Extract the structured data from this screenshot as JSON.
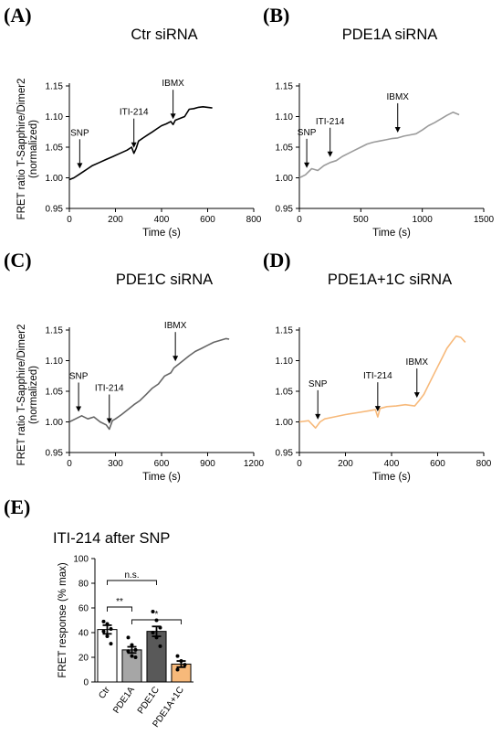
{
  "figure": {
    "shared_ylabel_line1": "FRET ratio T-Sapphire/Dimer2",
    "shared_ylabel_line2": "(normalized)"
  },
  "chart_data": [
    {
      "id": "A",
      "panel_label": "(A)",
      "type": "line",
      "title": "Ctr siRNA",
      "xlabel": "Time (s)",
      "ylabel": "FRET ratio T-Sapphire/Dimer2 (normalized)",
      "xlim": [
        0,
        800
      ],
      "ylim": [
        0.95,
        1.15
      ],
      "xticks": [
        0,
        200,
        400,
        600,
        800
      ],
      "xtick_labels": [
        "0",
        "200",
        "400",
        "600",
        "800"
      ],
      "yticks": [
        0.95,
        1.0,
        1.05,
        1.1,
        1.15
      ],
      "ytick_labels": [
        "0.95",
        "1.00",
        "1.05",
        "1.10",
        "1.15"
      ],
      "color": "#000000",
      "series": [
        {
          "x": [
            0,
            20,
            40,
            60,
            80,
            100,
            130,
            160,
            190,
            220,
            250,
            270,
            280,
            290,
            300,
            320,
            340,
            360,
            380,
            400,
            420,
            440,
            450,
            460,
            480,
            500,
            520,
            540,
            560,
            580,
            600,
            620
          ],
          "y": [
            0.997,
            1.0,
            1.005,
            1.01,
            1.015,
            1.02,
            1.025,
            1.03,
            1.035,
            1.04,
            1.045,
            1.05,
            1.04,
            1.048,
            1.06,
            1.065,
            1.07,
            1.075,
            1.08,
            1.085,
            1.088,
            1.092,
            1.087,
            1.094,
            1.097,
            1.1,
            1.112,
            1.113,
            1.115,
            1.116,
            1.115,
            1.114
          ]
        }
      ],
      "annotations": [
        {
          "text": "SNP",
          "x": 45
        },
        {
          "text": "ITI-214",
          "x": 280
        },
        {
          "text": "IBMX",
          "x": 450
        }
      ]
    },
    {
      "id": "B",
      "panel_label": "(B)",
      "type": "line",
      "title": "PDE1A siRNA",
      "xlabel": "Time (s)",
      "ylabel": "",
      "xlim": [
        0,
        1500
      ],
      "ylim": [
        0.95,
        1.15
      ],
      "xticks": [
        0,
        500,
        1000,
        1500
      ],
      "xtick_labels": [
        "0",
        "500",
        "1000",
        "1500"
      ],
      "yticks": [
        0.95,
        1.0,
        1.05,
        1.1,
        1.15
      ],
      "ytick_labels": [
        "0.95",
        "1.00",
        "1.05",
        "1.10",
        "1.15"
      ],
      "color": "#9b9b9b",
      "series": [
        {
          "x": [
            0,
            50,
            100,
            150,
            200,
            250,
            300,
            350,
            400,
            450,
            500,
            550,
            600,
            650,
            700,
            750,
            800,
            850,
            900,
            950,
            1000,
            1050,
            1100,
            1150,
            1200,
            1250,
            1300
          ],
          "y": [
            1.0,
            1.005,
            1.015,
            1.012,
            1.02,
            1.025,
            1.028,
            1.035,
            1.04,
            1.045,
            1.05,
            1.055,
            1.058,
            1.06,
            1.062,
            1.064,
            1.065,
            1.068,
            1.07,
            1.072,
            1.078,
            1.085,
            1.09,
            1.096,
            1.102,
            1.107,
            1.103
          ]
        }
      ],
      "annotations": [
        {
          "text": "SNP",
          "x": 60
        },
        {
          "text": "ITI-214",
          "x": 250
        },
        {
          "text": "IBMX",
          "x": 800
        }
      ]
    },
    {
      "id": "C",
      "panel_label": "(C)",
      "type": "line",
      "title": "PDE1C siRNA",
      "xlabel": "Time (s)",
      "ylabel": "FRET ratio T-Sapphire/Dimer2 (normalized)",
      "xlim": [
        0,
        1200
      ],
      "ylim": [
        0.95,
        1.15
      ],
      "xticks": [
        0,
        300,
        600,
        900,
        1200
      ],
      "xtick_labels": [
        "0",
        "300",
        "600",
        "900",
        "1200"
      ],
      "yticks": [
        0.95,
        1.0,
        1.05,
        1.1,
        1.15
      ],
      "ytick_labels": [
        "0.95",
        "1.00",
        "1.05",
        "1.10",
        "1.15"
      ],
      "color": "#666666",
      "series": [
        {
          "x": [
            0,
            40,
            80,
            120,
            160,
            200,
            240,
            260,
            280,
            300,
            340,
            380,
            420,
            460,
            500,
            540,
            580,
            620,
            660,
            680,
            700,
            740,
            780,
            820,
            860,
            900,
            940,
            980,
            1020,
            1040
          ],
          "y": [
            1.0,
            1.005,
            1.01,
            1.005,
            1.008,
            1.0,
            0.995,
            0.988,
            1.002,
            1.005,
            1.012,
            1.02,
            1.028,
            1.035,
            1.045,
            1.055,
            1.062,
            1.075,
            1.08,
            1.088,
            1.092,
            1.1,
            1.108,
            1.115,
            1.12,
            1.125,
            1.13,
            1.133,
            1.136,
            1.135
          ]
        }
      ],
      "annotations": [
        {
          "text": "SNP",
          "x": 60
        },
        {
          "text": "ITI-214",
          "x": 260
        },
        {
          "text": "IBMX",
          "x": 690
        }
      ]
    },
    {
      "id": "D",
      "panel_label": "(D)",
      "type": "line",
      "title": "PDE1A+1C siRNA",
      "xlabel": "Time (s)",
      "ylabel": "",
      "xlim": [
        0,
        800
      ],
      "ylim": [
        0.95,
        1.15
      ],
      "xticks": [
        0,
        200,
        400,
        600,
        800
      ],
      "xtick_labels": [
        "0",
        "200",
        "400",
        "600",
        "800"
      ],
      "yticks": [
        0.95,
        1.0,
        1.05,
        1.1,
        1.15
      ],
      "ytick_labels": [
        "0.95",
        "1.00",
        "1.05",
        "1.10",
        "1.15"
      ],
      "color": "#f7b97a",
      "series": [
        {
          "x": [
            0,
            40,
            70,
            90,
            110,
            150,
            200,
            250,
            300,
            330,
            340,
            350,
            380,
            420,
            460,
            500,
            520,
            540,
            560,
            580,
            600,
            620,
            640,
            660,
            680,
            700,
            720
          ],
          "y": [
            1.0,
            1.002,
            0.99,
            1.0,
            1.005,
            1.008,
            1.012,
            1.015,
            1.018,
            1.02,
            1.008,
            1.022,
            1.025,
            1.026,
            1.028,
            1.026,
            1.035,
            1.045,
            1.06,
            1.075,
            1.09,
            1.105,
            1.12,
            1.13,
            1.14,
            1.138,
            1.13
          ]
        }
      ],
      "annotations": [
        {
          "text": "SNP",
          "x": 80
        },
        {
          "text": "ITI-214",
          "x": 340
        },
        {
          "text": "IBMX",
          "x": 510
        }
      ]
    },
    {
      "id": "E",
      "panel_label": "(E)",
      "type": "bar",
      "title": "ITI-214 after SNP",
      "xlabel": "",
      "ylabel": "FRET response (% max)",
      "categories": [
        "Ctr",
        "PDE1A",
        "PDE1C",
        "PDE1A+1C"
      ],
      "values": [
        42.5,
        26.0,
        41.0,
        14.5
      ],
      "errors": [
        3.5,
        2.5,
        4.0,
        2.5
      ],
      "colors": [
        "#ffffff",
        "#a6a6a6",
        "#595959",
        "#f7b97a"
      ],
      "points": [
        [
          49,
          47,
          43,
          41,
          37,
          31
        ],
        [
          36,
          30,
          26,
          25,
          21,
          20
        ],
        [
          57,
          50,
          44,
          40,
          36,
          29
        ],
        [
          21,
          17,
          14,
          10
        ]
      ],
      "ylim": [
        0,
        100
      ],
      "yticks": [
        0,
        20,
        40,
        60,
        80,
        100
      ],
      "ytick_labels": [
        "0",
        "20",
        "40",
        "60",
        "80",
        "100"
      ],
      "significance": [
        {
          "from": 0,
          "to": 2,
          "label": "n.s."
        },
        {
          "from": 0,
          "to": 1,
          "label": "**"
        },
        {
          "from": 1,
          "to": 3,
          "label": "*"
        }
      ]
    }
  ]
}
